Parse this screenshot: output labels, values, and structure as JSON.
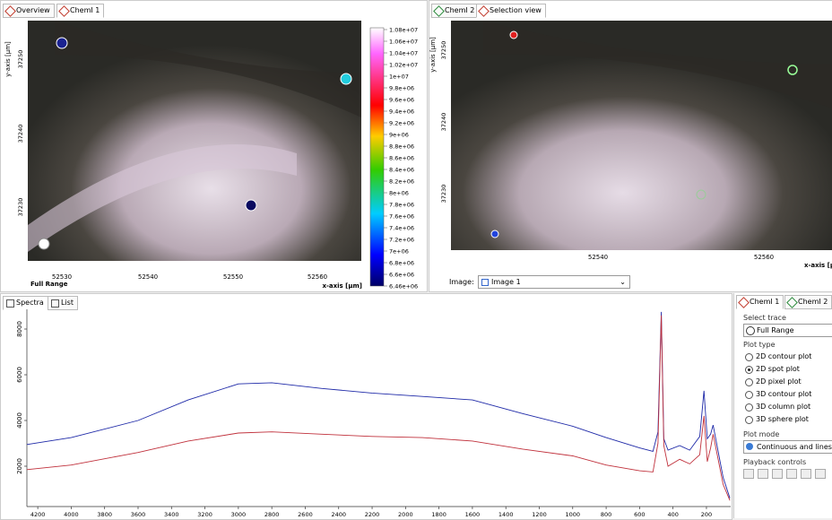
{
  "left_panel": {
    "tabs": [
      "Overview",
      "ChemI 1"
    ],
    "y_axis_label": "y-axis [µm]",
    "y_ticks": [
      "37250",
      "37240",
      "37230"
    ],
    "x_ticks": [
      "52530",
      "52540",
      "52550",
      "52560"
    ],
    "x_axis_label": "x-axis [µm]",
    "trace_label": "Full Range",
    "colorbar_labels": [
      "1.08e+07",
      "1.06e+07",
      "1.04e+07",
      "1.02e+07",
      "1e+07",
      "9.8e+06",
      "9.6e+06",
      "9.4e+06",
      "9.2e+06",
      "9e+06",
      "8.8e+06",
      "8.6e+06",
      "8.4e+06",
      "8.2e+06",
      "8e+06",
      "7.8e+06",
      "7.6e+06",
      "7.4e+06",
      "7.2e+06",
      "7e+06",
      "6.8e+06",
      "6.6e+06",
      "6.46e+06"
    ]
  },
  "right_panel": {
    "tabs": [
      "ChemI 2",
      "Selection view"
    ],
    "y_axis_label": "y-axis [µm]",
    "y_ticks": [
      "37250",
      "37240",
      "37230"
    ],
    "x_ticks": [
      "52540",
      "52560"
    ],
    "x_axis_label": "x-axis [µm]",
    "image_label": "Image:",
    "image_select": "Image 1"
  },
  "bottom_tabs": [
    "Spectra",
    "List"
  ],
  "chart_data": {
    "type": "line",
    "x": [
      4265,
      4000,
      3600,
      3300,
      3000,
      2800,
      2500,
      2200,
      1900,
      1600,
      1300,
      1000,
      800,
      600,
      520,
      490,
      470,
      455,
      430,
      360,
      300,
      240,
      215,
      195,
      175,
      160,
      100,
      60
    ],
    "series": [
      {
        "name": "blue",
        "color": "#1f2aa8",
        "values": [
          2950,
          3250,
          4000,
          4900,
          5600,
          5650,
          5400,
          5200,
          5050,
          4900,
          4300,
          3750,
          3250,
          2800,
          2650,
          3500,
          8750,
          3200,
          2700,
          2900,
          2700,
          3300,
          5300,
          3200,
          3400,
          3800,
          1500,
          600
        ]
      },
      {
        "name": "red",
        "color": "#c0313c",
        "values": [
          1850,
          2050,
          2600,
          3100,
          3450,
          3500,
          3400,
          3300,
          3250,
          3100,
          2750,
          2450,
          2050,
          1800,
          1750,
          3000,
          8600,
          2900,
          2000,
          2300,
          2100,
          2500,
          4200,
          2200,
          2800,
          3400,
          1200,
          500
        ]
      }
    ],
    "xlim": [
      4265,
      55
    ],
    "ylim": [
      235,
      8863
    ],
    "xticks": [
      4200,
      4000,
      3800,
      3600,
      3400,
      3200,
      3000,
      2800,
      2600,
      2400,
      2200,
      2000,
      1800,
      1600,
      1400,
      1200,
      1000,
      800,
      600,
      400,
      200
    ],
    "yticks": [
      2000,
      4000,
      6000,
      8000
    ]
  },
  "controls": {
    "tabs": [
      "ChemI 1",
      "ChemI 2"
    ],
    "select_trace_label": "Select trace",
    "trace": "Full Range",
    "plot_type_label": "Plot type",
    "plot_types": [
      "2D contour plot",
      "2D spot plot",
      "2D pixel plot",
      "3D contour plot",
      "3D column plot",
      "3D sphere plot"
    ],
    "plot_mode_label": "Plot mode",
    "plot_mode": "Continuous and lines",
    "playback_label": "Playback controls"
  }
}
